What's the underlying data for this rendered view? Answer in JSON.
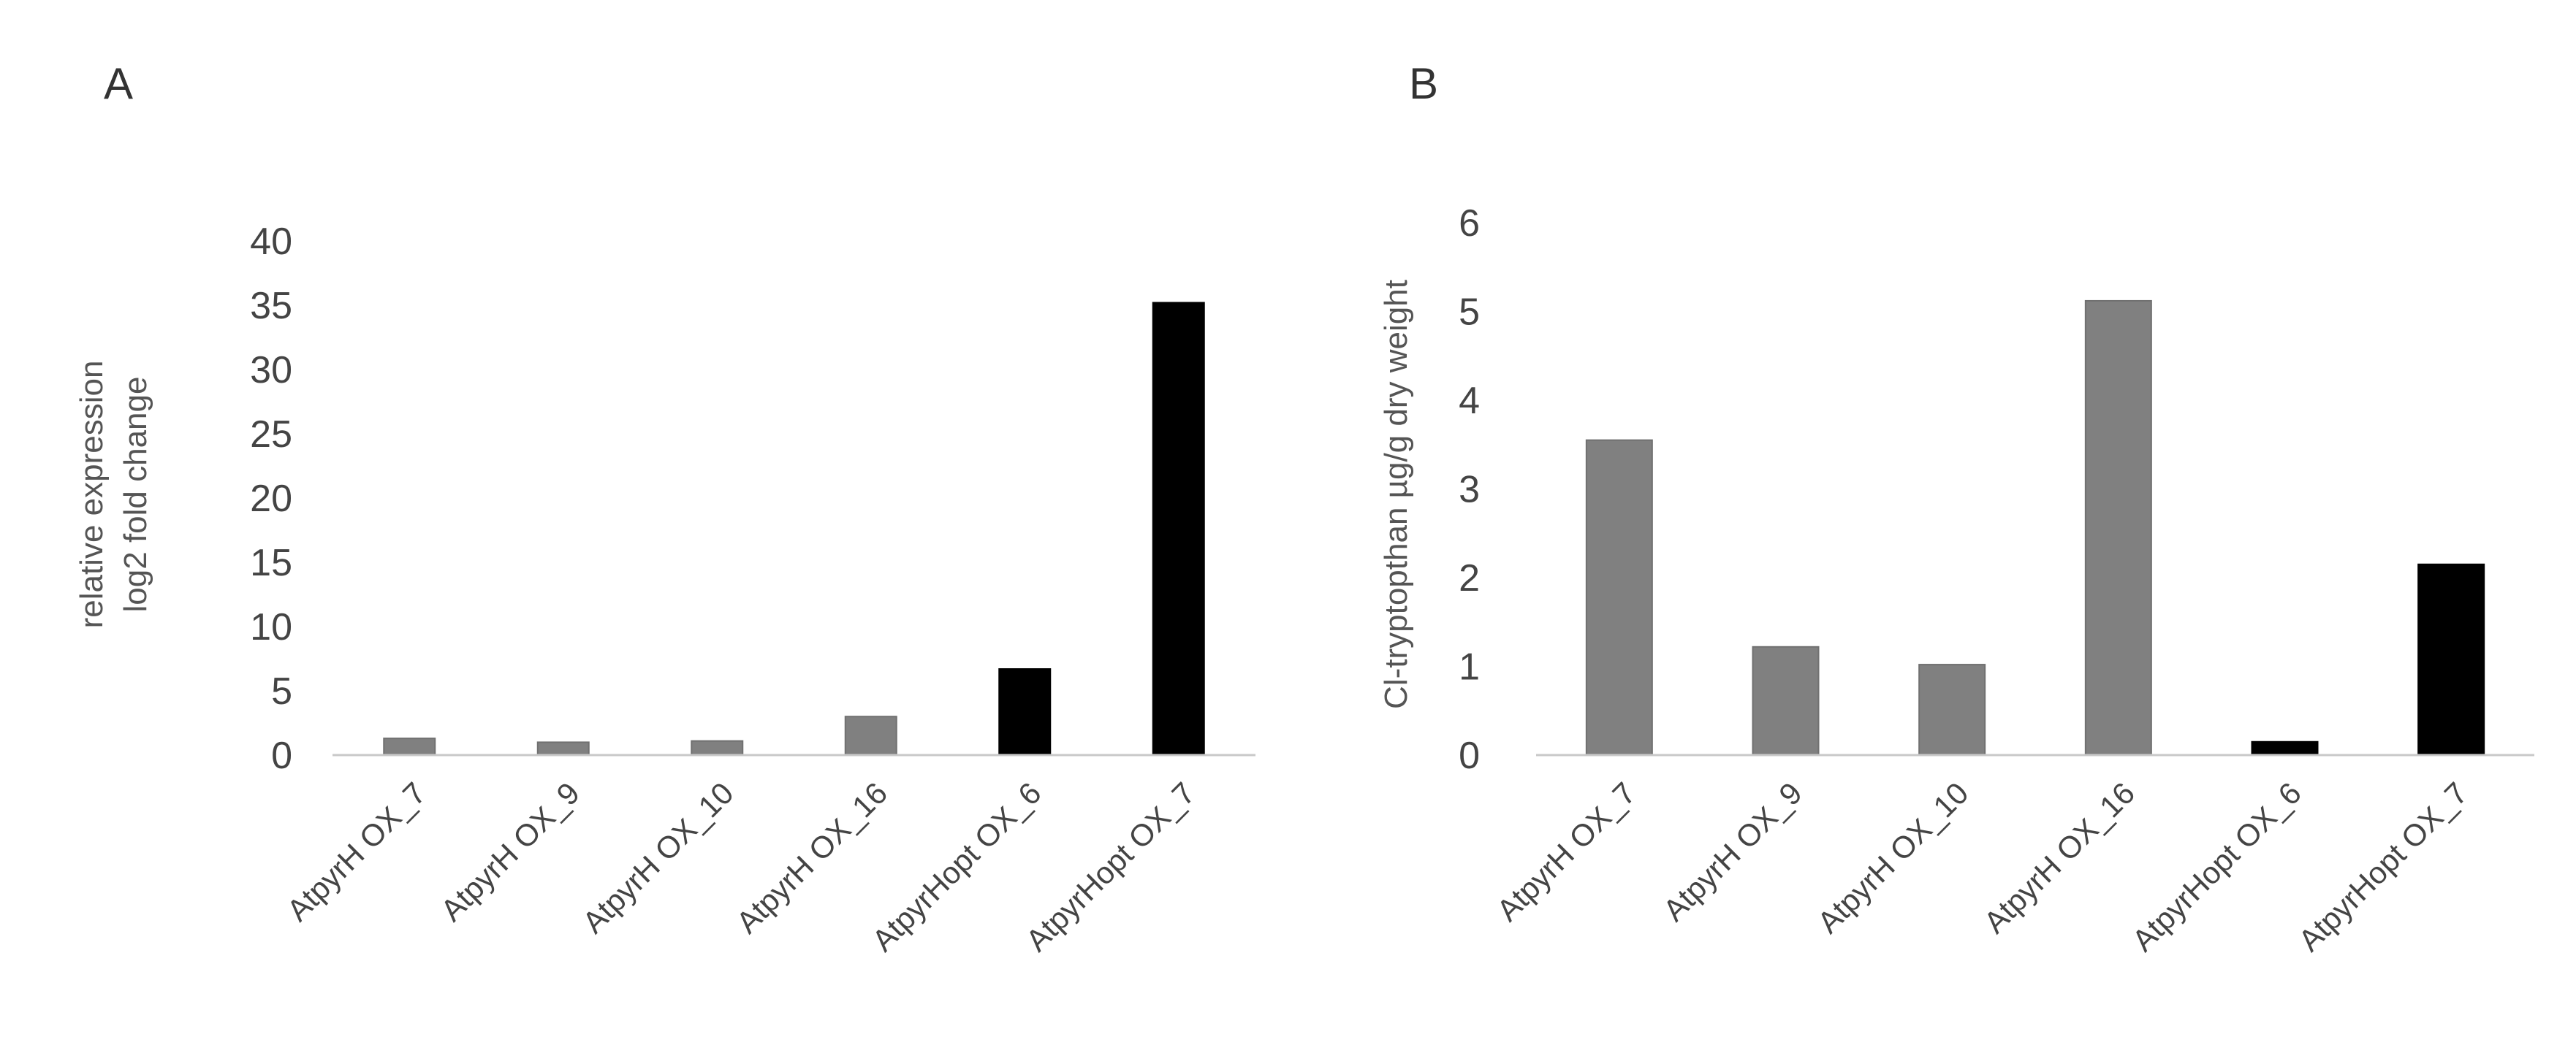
{
  "panels": [
    {
      "letter": "A"
    },
    {
      "letter": "B"
    }
  ],
  "chart_data": [
    {
      "type": "bar",
      "panel": "A",
      "categories": [
        "AtpyrH OX_7",
        "AtpyrH OX_9",
        "AtpyrH OX_10",
        "AtpyrH OX_16",
        "AtpyrHopt OX_6",
        "AtpyrHopt OX_7"
      ],
      "values": [
        1.3,
        1.0,
        1.1,
        3.0,
        6.7,
        35.2
      ],
      "bar_colors": [
        "#808080",
        "#808080",
        "#808080",
        "#808080",
        "#000000",
        "#000000"
      ],
      "ylabel_lines": [
        "relative expression",
        "log2 fold change"
      ],
      "ylim": [
        0,
        40
      ],
      "yticks": [
        0,
        5,
        10,
        15,
        20,
        25,
        30,
        35,
        40
      ],
      "grid": false,
      "legend": "none"
    },
    {
      "type": "bar",
      "panel": "B",
      "categories": [
        "AtpyrH OX_7",
        "AtpyrH OX_9",
        "AtpyrH OX_10",
        "AtpyrH OX_16",
        "AtpyrHopt OX_6",
        "AtpyrHopt OX_7"
      ],
      "values": [
        3.55,
        1.22,
        1.02,
        5.12,
        0.15,
        2.15
      ],
      "bar_colors": [
        "#808080",
        "#808080",
        "#808080",
        "#808080",
        "#000000",
        "#000000"
      ],
      "ylabel_lines": [
        "Cl-tryptopthan µg/g dry weight"
      ],
      "ylim": [
        0,
        6
      ],
      "yticks": [
        0,
        1,
        2,
        3,
        4,
        5,
        6
      ],
      "grid": false,
      "legend": "none"
    }
  ]
}
